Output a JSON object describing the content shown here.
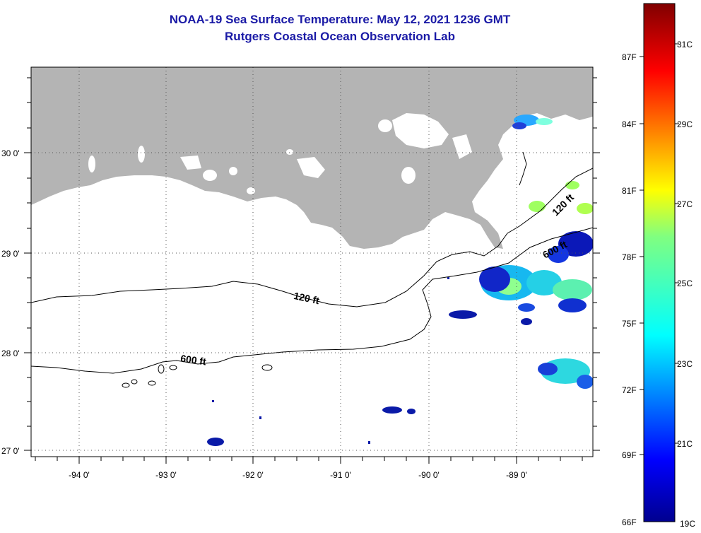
{
  "header": {
    "title": "NOAA-19 Sea Surface Temperature:  May 12, 2021 1236 GMT",
    "subtitle": "Rutgers Coastal Ocean Observation Lab"
  },
  "axes": {
    "longitude_labels": [
      "-94 0'",
      "-93 0'",
      "-92 0'",
      "-91 0'",
      "-90 0'",
      "-89 0'"
    ],
    "latitude_labels": [
      "30 0'",
      "29 0'",
      "28 0'",
      "27 0'"
    ]
  },
  "contours": {
    "shallow_label": "120 ft",
    "deep_label": "600 ft"
  },
  "colorbar": {
    "fahrenheit_labels": [
      "87F",
      "84F",
      "81F",
      "78F",
      "75F",
      "72F",
      "69F",
      "66F"
    ],
    "celsius_labels": [
      "31C",
      "29C",
      "27C",
      "25C",
      "23C",
      "21C",
      "19C"
    ]
  },
  "colors": {
    "land": "#b4b4b4",
    "title": "#1a1aa6",
    "ocean": "#ffffff"
  }
}
